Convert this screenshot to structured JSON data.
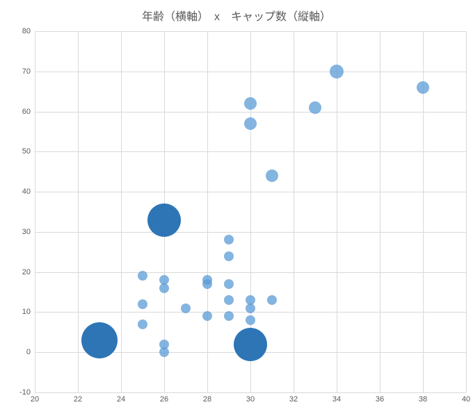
{
  "chart": {
    "type": "bubble",
    "title": "年齢（横軸）　x　キャップ数（縦軸）",
    "title_fontsize": 16,
    "title_color": "#595959",
    "background_color": "#ffffff",
    "grid_color": "#d9d9d9",
    "axis_label_color": "#595959",
    "axis_label_fontsize": 11,
    "xlim": [
      20,
      40
    ],
    "ylim": [
      -10,
      80
    ],
    "xtick_step": 2,
    "ytick_step": 10,
    "xticks": [
      20,
      22,
      24,
      26,
      28,
      30,
      32,
      34,
      36,
      38,
      40
    ],
    "yticks": [
      -10,
      0,
      10,
      20,
      30,
      40,
      50,
      60,
      70,
      80
    ],
    "points": [
      {
        "x": 23,
        "y": 3,
        "size": 52,
        "color": "#2e75b6",
        "opacity": 1.0
      },
      {
        "x": 26,
        "y": 33,
        "size": 48,
        "color": "#2e75b6",
        "opacity": 1.0
      },
      {
        "x": 30,
        "y": 2,
        "size": 48,
        "color": "#2e75b6",
        "opacity": 1.0
      },
      {
        "x": 25,
        "y": 19,
        "size": 14,
        "color": "#5b9bd5",
        "opacity": 0.75
      },
      {
        "x": 25,
        "y": 12,
        "size": 14,
        "color": "#5b9bd5",
        "opacity": 0.75
      },
      {
        "x": 25,
        "y": 7,
        "size": 14,
        "color": "#5b9bd5",
        "opacity": 0.75
      },
      {
        "x": 26,
        "y": 18,
        "size": 14,
        "color": "#5b9bd5",
        "opacity": 0.75
      },
      {
        "x": 26,
        "y": 16,
        "size": 14,
        "color": "#5b9bd5",
        "opacity": 0.75
      },
      {
        "x": 26,
        "y": 2,
        "size": 14,
        "color": "#5b9bd5",
        "opacity": 0.75
      },
      {
        "x": 26,
        "y": 0,
        "size": 14,
        "color": "#5b9bd5",
        "opacity": 0.75
      },
      {
        "x": 27,
        "y": 11,
        "size": 14,
        "color": "#5b9bd5",
        "opacity": 0.75
      },
      {
        "x": 28,
        "y": 18,
        "size": 14,
        "color": "#5b9bd5",
        "opacity": 0.75
      },
      {
        "x": 28,
        "y": 17,
        "size": 14,
        "color": "#5b9bd5",
        "opacity": 0.75
      },
      {
        "x": 28,
        "y": 9,
        "size": 14,
        "color": "#5b9bd5",
        "opacity": 0.75
      },
      {
        "x": 29,
        "y": 28,
        "size": 14,
        "color": "#5b9bd5",
        "opacity": 0.75
      },
      {
        "x": 29,
        "y": 24,
        "size": 14,
        "color": "#5b9bd5",
        "opacity": 0.75
      },
      {
        "x": 29,
        "y": 17,
        "size": 14,
        "color": "#5b9bd5",
        "opacity": 0.75
      },
      {
        "x": 29,
        "y": 13,
        "size": 14,
        "color": "#5b9bd5",
        "opacity": 0.75
      },
      {
        "x": 29,
        "y": 9,
        "size": 14,
        "color": "#5b9bd5",
        "opacity": 0.75
      },
      {
        "x": 30,
        "y": 62,
        "size": 18,
        "color": "#5b9bd5",
        "opacity": 0.75
      },
      {
        "x": 30,
        "y": 57,
        "size": 18,
        "color": "#5b9bd5",
        "opacity": 0.75
      },
      {
        "x": 30,
        "y": 13,
        "size": 14,
        "color": "#5b9bd5",
        "opacity": 0.75
      },
      {
        "x": 30,
        "y": 11,
        "size": 14,
        "color": "#5b9bd5",
        "opacity": 0.75
      },
      {
        "x": 30,
        "y": 8,
        "size": 14,
        "color": "#5b9bd5",
        "opacity": 0.75
      },
      {
        "x": 31,
        "y": 44,
        "size": 18,
        "color": "#5b9bd5",
        "opacity": 0.75
      },
      {
        "x": 31,
        "y": 13,
        "size": 14,
        "color": "#5b9bd5",
        "opacity": 0.75
      },
      {
        "x": 33,
        "y": 61,
        "size": 18,
        "color": "#5b9bd5",
        "opacity": 0.75
      },
      {
        "x": 34,
        "y": 70,
        "size": 20,
        "color": "#5b9bd5",
        "opacity": 0.75
      },
      {
        "x": 38,
        "y": 66,
        "size": 18,
        "color": "#5b9bd5",
        "opacity": 0.75
      }
    ]
  }
}
